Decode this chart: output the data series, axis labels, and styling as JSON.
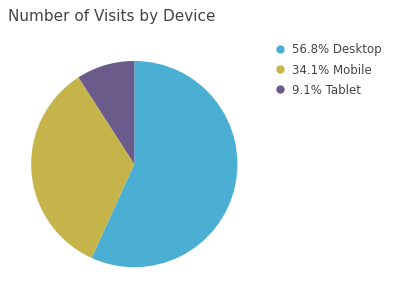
{
  "title": "Number of Visits by Device",
  "slices": [
    56.8,
    34.1,
    9.1
  ],
  "labels": [
    "56.8% Desktop",
    "34.1% Mobile",
    "9.1% Tablet"
  ],
  "colors": [
    "#4BAFD4",
    "#C4B44A",
    "#6B5B8B"
  ],
  "startangle": 90,
  "background_color": "#ffffff",
  "title_fontsize": 11,
  "title_color": "#444444",
  "legend_fontsize": 8.5
}
